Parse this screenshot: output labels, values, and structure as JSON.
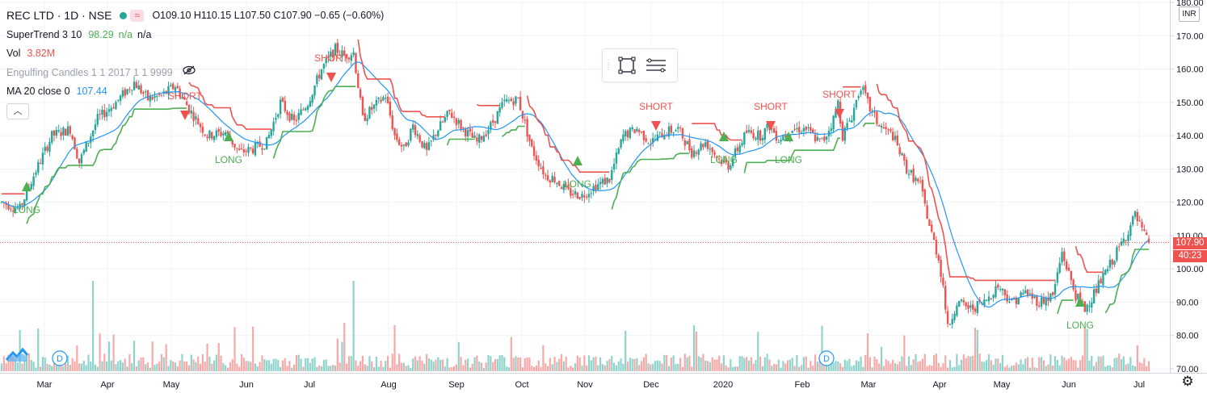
{
  "header": {
    "symbol": "REC LTD · 1D · NSE",
    "wave_icon": "≈",
    "ohlc": {
      "open_label": "O",
      "open": "109.10",
      "high_label": "H",
      "high": "110.15",
      "low_label": "L",
      "low": "107.50",
      "close_label": "C",
      "close": "107.90",
      "change": "−0.65 (−0.60%)"
    }
  },
  "indicators": {
    "supertrend": {
      "name": "SuperTrend 3 10",
      "value": "98.29",
      "na1": "n/a",
      "na2": "n/a"
    },
    "volume": {
      "name": "Vol",
      "value": "3.82M"
    },
    "engulfing": {
      "name": "Engulfing Candles 1 1 2017 1 1 9999"
    },
    "ma": {
      "name": "MA 20 close 0",
      "value": "107.44"
    },
    "collapse_icon": "︿"
  },
  "price_scale": {
    "currency": "INR",
    "last_price": "107.90",
    "countdown": "40:23",
    "ticks": [
      "180.00",
      "170.00",
      "160.00",
      "150.00",
      "140.00",
      "130.00",
      "120.00",
      "110.00",
      "100.00",
      "90.00",
      "80.00",
      "70.00"
    ]
  },
  "time_axis": [
    "Mar",
    "Apr",
    "May",
    "Jun",
    "Jul",
    "Aug",
    "Sep",
    "Oct",
    "Nov",
    "Dec",
    "2020",
    "Feb",
    "Mar",
    "Apr",
    "May",
    "Jun",
    "Jul"
  ],
  "dividend_marker_label": "D",
  "colors": {
    "up": "#26a69a",
    "down": "#ef5350",
    "vol_up": "#8fd3cc",
    "vol_down": "#f7a9a7",
    "supertrend_up": "#4caf50",
    "supertrend_down": "#ef5350",
    "ma": "#2196f3",
    "last_price_line": "#ef5350",
    "countdown_bg": "#ef5350"
  },
  "chart_data": {
    "type": "candlestick",
    "title": "REC LTD · 1D · NSE",
    "ylim": [
      70,
      180
    ],
    "last_close": 107.9,
    "ohlc_anchors": [
      [
        0,
        120
      ],
      [
        8,
        118
      ],
      [
        14,
        128
      ],
      [
        22,
        140
      ],
      [
        30,
        142
      ],
      [
        34,
        132
      ],
      [
        42,
        145
      ],
      [
        50,
        150
      ],
      [
        58,
        156
      ],
      [
        64,
        151
      ],
      [
        70,
        152
      ],
      [
        76,
        155
      ],
      [
        82,
        148
      ],
      [
        90,
        140
      ],
      [
        98,
        141
      ],
      [
        104,
        135
      ],
      [
        110,
        136
      ],
      [
        116,
        138
      ],
      [
        122,
        150
      ],
      [
        128,
        144
      ],
      [
        134,
        150
      ],
      [
        140,
        160
      ],
      [
        146,
        166
      ],
      [
        150,
        164
      ],
      [
        154,
        165
      ],
      [
        158,
        145
      ],
      [
        162,
        148
      ],
      [
        168,
        152
      ],
      [
        172,
        140
      ],
      [
        176,
        136
      ],
      [
        180,
        143
      ],
      [
        186,
        135
      ],
      [
        190,
        141
      ],
      [
        196,
        147
      ],
      [
        202,
        142
      ],
      [
        208,
        138
      ],
      [
        214,
        143
      ],
      [
        220,
        150
      ],
      [
        226,
        151
      ],
      [
        232,
        136
      ],
      [
        238,
        128
      ],
      [
        242,
        127
      ],
      [
        248,
        123
      ],
      [
        254,
        122
      ],
      [
        260,
        125
      ],
      [
        266,
        127
      ],
      [
        272,
        140
      ],
      [
        278,
        142
      ],
      [
        284,
        138
      ],
      [
        290,
        141
      ],
      [
        296,
        142
      ],
      [
        302,
        135
      ],
      [
        308,
        138
      ],
      [
        314,
        133
      ],
      [
        318,
        131
      ],
      [
        322,
        136
      ],
      [
        326,
        141
      ],
      [
        332,
        140
      ],
      [
        336,
        143
      ],
      [
        340,
        139
      ],
      [
        346,
        142
      ],
      [
        352,
        142
      ],
      [
        358,
        138
      ],
      [
        360,
        139
      ],
      [
        364,
        145
      ],
      [
        366,
        150
      ],
      [
        368,
        140
      ],
      [
        372,
        146
      ],
      [
        376,
        155
      ],
      [
        380,
        148
      ],
      [
        384,
        143
      ],
      [
        390,
        140
      ],
      [
        396,
        130
      ],
      [
        402,
        125
      ],
      [
        406,
        113
      ],
      [
        410,
        103
      ],
      [
        412,
        95
      ],
      [
        414,
        82
      ],
      [
        418,
        90
      ],
      [
        424,
        88
      ],
      [
        430,
        90
      ],
      [
        436,
        95
      ],
      [
        442,
        90
      ],
      [
        448,
        93
      ],
      [
        454,
        90
      ],
      [
        460,
        92
      ],
      [
        464,
        105
      ],
      [
        470,
        92
      ],
      [
        474,
        88
      ],
      [
        480,
        95
      ],
      [
        484,
        100
      ],
      [
        488,
        105
      ],
      [
        492,
        110
      ],
      [
        496,
        116
      ],
      [
        500,
        110
      ],
      [
        502,
        107.9
      ]
    ],
    "volume_spikes": [
      {
        "bar": 40,
        "level": "high"
      },
      {
        "bar": 154,
        "level": "high"
      },
      {
        "bar": 150,
        "level": "medium"
      }
    ],
    "signals": [
      {
        "type": "LONG",
        "label": "LONG",
        "month": "Feb"
      },
      {
        "type": "SHORT",
        "label": "SHORT",
        "month": "Apr"
      },
      {
        "type": "LONG",
        "label": "LONG",
        "month": "May"
      },
      {
        "type": "SHORT",
        "label": "SHORT",
        "month": "Jul"
      },
      {
        "type": "LONG",
        "label": "LONG",
        "month": "Oct"
      },
      {
        "type": "SHORT",
        "label": "SHORT",
        "month": "Nov"
      },
      {
        "type": "LONG",
        "label": "LONG",
        "month": "Dec"
      },
      {
        "type": "SHORT",
        "label": "SHORT",
        "month": "Jan"
      },
      {
        "type": "LONG",
        "label": "LONG",
        "month": "Jan"
      },
      {
        "type": "SHORT",
        "label": "SHORT",
        "month": "Feb"
      },
      {
        "type": "LONG",
        "label": "LONG",
        "month": "Jun"
      }
    ]
  }
}
